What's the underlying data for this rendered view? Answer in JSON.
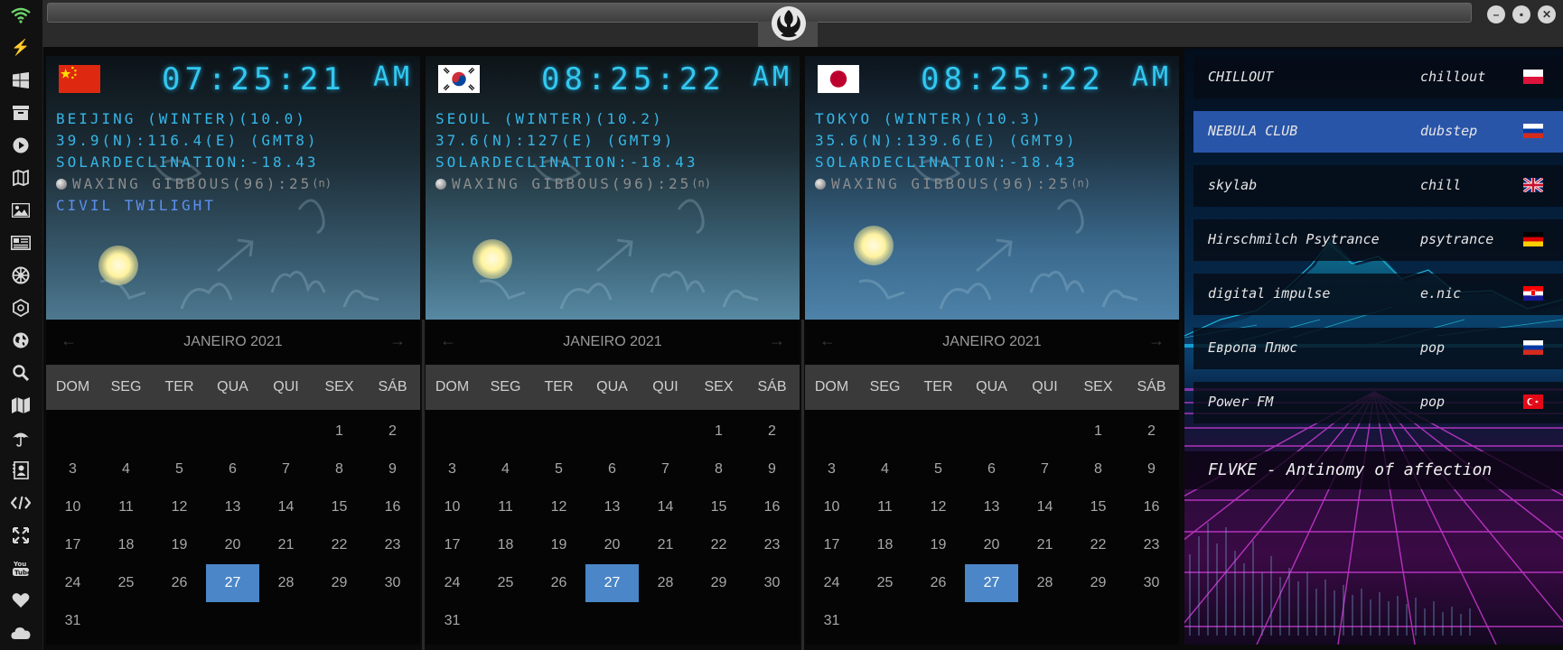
{
  "sidebar": {
    "icons": [
      "wifi-icon",
      "bolt-icon",
      "windows-icon",
      "archive-icon",
      "play-icon",
      "map-book-icon",
      "image-icon",
      "newspaper-icon",
      "rebel-icon",
      "empire-icon",
      "globe-icon",
      "search-icon",
      "map-icon",
      "umbrella-icon",
      "contact-icon",
      "code-icon",
      "expand-icon",
      "youtube-icon",
      "heart-icon",
      "cloud-icon"
    ]
  },
  "window": {
    "minimize": "–",
    "maximize": "▪",
    "close": "✕"
  },
  "clocks": [
    {
      "flag": "china",
      "time": "07:25:21",
      "ampm": "AM",
      "line1": "BEIJING (WINTER)(10.0)",
      "line2": "39.9(N):116.4(E) (GMT8)",
      "line3": "SOLARDECLINATION:-18.43",
      "moon": "WAXING GIBBOUS(96):25",
      "moon_n": "(n)",
      "twilight": "CIVIL TWILIGHT"
    },
    {
      "flag": "korea",
      "time": "08:25:22",
      "ampm": "AM",
      "line1": "SEOUL (WINTER)(10.2)",
      "line2": "37.6(N):127(E) (GMT9)",
      "line3": "SOLARDECLINATION:-18.43",
      "moon": "WAXING GIBBOUS(96):25",
      "moon_n": "(n)",
      "twilight": ""
    },
    {
      "flag": "japan",
      "time": "08:25:22",
      "ampm": "AM",
      "line1": "TOKYO (WINTER)(10.3)",
      "line2": "35.6(N):139.6(E) (GMT9)",
      "line3": "SOLARDECLINATION:-18.43",
      "moon": "WAXING GIBBOUS(96):25",
      "moon_n": "(n)",
      "twilight": ""
    }
  ],
  "calendar": {
    "month": "JANEIRO 2021",
    "prev": "←",
    "next": "→",
    "weekdays": [
      "DOM",
      "SEG",
      "TER",
      "QUA",
      "QUI",
      "SEX",
      "SÁB"
    ],
    "first_weekday": 5,
    "days_in_month": 31,
    "today": 27
  },
  "radio": {
    "stations": [
      {
        "name": "CHILLOUT",
        "genre": "chillout",
        "flag": "poland",
        "active": false
      },
      {
        "name": "NEBULA CLUB",
        "genre": "dubstep",
        "flag": "russia",
        "active": true
      },
      {
        "name": "skylab",
        "genre": "chill",
        "flag": "uk",
        "active": false
      },
      {
        "name": "Hirschmilch Psytrance",
        "genre": "psytrance",
        "flag": "germany",
        "active": false
      },
      {
        "name": "digital impulse",
        "genre": "e.nic",
        "flag": "croatia",
        "active": false
      },
      {
        "name": "Европа Плюс",
        "genre": "pop",
        "flag": "russia",
        "active": false
      },
      {
        "name": "Power FM",
        "genre": "pop",
        "flag": "turkey",
        "active": false
      }
    ],
    "now_playing": "FLVKE - Antinomy of affection"
  }
}
